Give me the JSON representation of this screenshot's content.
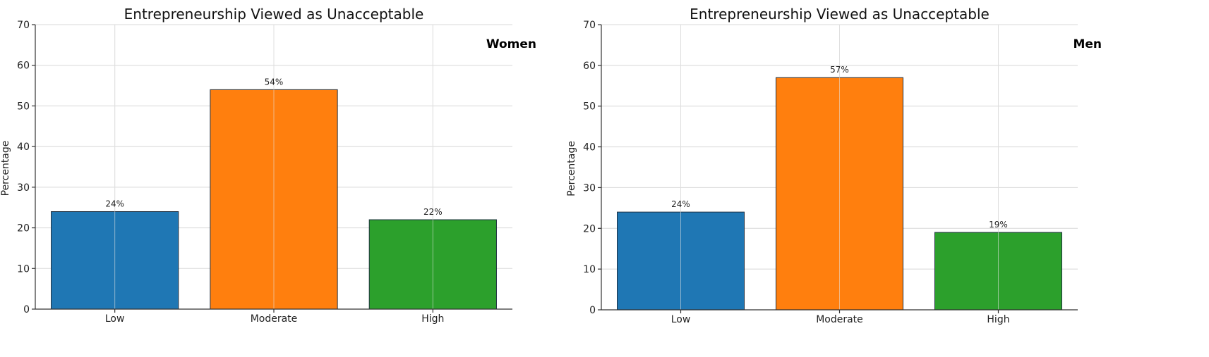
{
  "chart_data": [
    {
      "type": "bar",
      "title": "Entrepreneurship Viewed as Unacceptable",
      "panel_label": "Women",
      "ylabel": "Percentage",
      "xlabel": "",
      "categories": [
        "Low",
        "Moderate",
        "High"
      ],
      "values": [
        24,
        54,
        22
      ],
      "value_labels": [
        "24%",
        "54%",
        "22%"
      ],
      "colors": [
        "#1f77b4",
        "#ff7f0e",
        "#2ca02c"
      ],
      "ylim": [
        0,
        70
      ],
      "yticks": [
        0,
        10,
        20,
        30,
        40,
        50,
        60,
        70
      ],
      "grid": true
    },
    {
      "type": "bar",
      "title": "Entrepreneurship Viewed as Unacceptable",
      "panel_label": "Men",
      "ylabel": "Percentage",
      "xlabel": "",
      "categories": [
        "Low",
        "Moderate",
        "High"
      ],
      "values": [
        24,
        57,
        19
      ],
      "value_labels": [
        "24%",
        "57%",
        "19%"
      ],
      "colors": [
        "#1f77b4",
        "#ff7f0e",
        "#2ca02c"
      ],
      "ylim": [
        0,
        70
      ],
      "yticks": [
        0,
        10,
        20,
        30,
        40,
        50,
        60,
        70
      ],
      "grid": true
    }
  ]
}
